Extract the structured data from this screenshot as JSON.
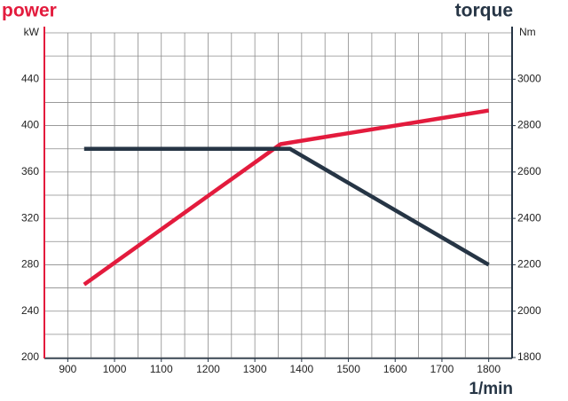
{
  "chart_data": {
    "type": "line",
    "title_left": "power",
    "title_right": "torque",
    "y_label": "kW",
    "y2_label": "Nm",
    "x_label": "1/min",
    "xlim": [
      850,
      1850
    ],
    "xticks": [
      900,
      1000,
      1100,
      1200,
      1300,
      1400,
      1500,
      1600,
      1700,
      1800
    ],
    "ylim": [
      200,
      480
    ],
    "yticks": [
      200,
      240,
      280,
      320,
      360,
      400,
      440
    ],
    "y2lim": [
      1800,
      3200
    ],
    "y2ticks": [
      1800,
      2000,
      2200,
      2400,
      2600,
      2800,
      3000
    ],
    "grid": true,
    "series": [
      {
        "name": "power",
        "color": "#e31b3d",
        "x": [
          935,
          1355,
          1800
        ],
        "values": [
          263,
          384,
          413
        ]
      },
      {
        "name": "torque",
        "color": "#263545",
        "axis": "y2",
        "x": [
          935,
          1375,
          1800
        ],
        "values": [
          2700,
          2700,
          2200
        ]
      }
    ]
  }
}
